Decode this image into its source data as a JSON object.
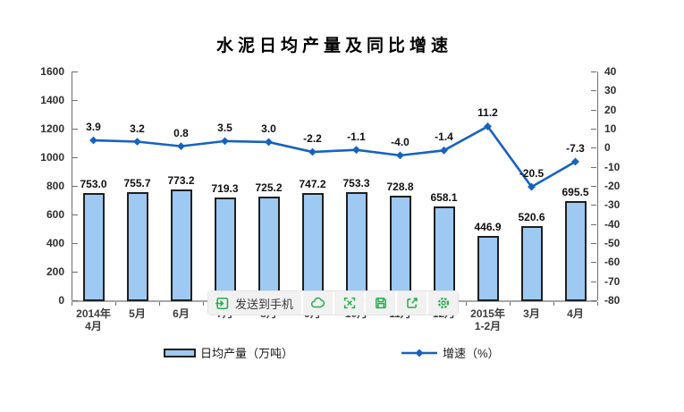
{
  "chart_data": {
    "type": "bar+line",
    "title": "水泥日均产量及同比增速",
    "categories": [
      "2014年\n4月",
      "5月",
      "6月",
      "7月",
      "8月",
      "9月",
      "10月",
      "11月",
      "12月",
      "2015年\n1-2月",
      "3月",
      "4月"
    ],
    "series": [
      {
        "name": "日均产量（万吨）",
        "type": "bar",
        "axis": "left",
        "values": [
          753.0,
          755.7,
          773.2,
          719.3,
          725.2,
          747.2,
          753.3,
          728.8,
          658.1,
          446.9,
          520.6,
          695.5
        ],
        "fill": "#9dc9f2",
        "border": "#1f1f1f"
      },
      {
        "name": "增速（%）",
        "type": "line",
        "axis": "right",
        "values": [
          3.9,
          3.2,
          0.8,
          3.5,
          3.0,
          -2.2,
          -1.1,
          -4.0,
          -1.4,
          11.2,
          -20.5,
          -7.3
        ],
        "color": "#1663be",
        "marker": "diamond"
      }
    ],
    "left_axis": {
      "min": 0,
      "max": 1600,
      "step": 200
    },
    "right_axis": {
      "min": -80,
      "max": 40,
      "step": 10
    },
    "grid": false,
    "legend_position": "bottom",
    "value_labels": true
  },
  "toolbar": {
    "send_label": "发送到手机",
    "buttons": [
      "send-to-phone",
      "cloud-upload",
      "fullscreen-expand",
      "save",
      "share",
      "settings"
    ],
    "accent_green": "#25ad4c",
    "background": "#f1f1f1"
  },
  "colors": {
    "axis_text": "#2e2e2e",
    "value_text": "#101010",
    "axis_line": "#6e6e6e",
    "x_axis_line": "#a6a6a6"
  }
}
